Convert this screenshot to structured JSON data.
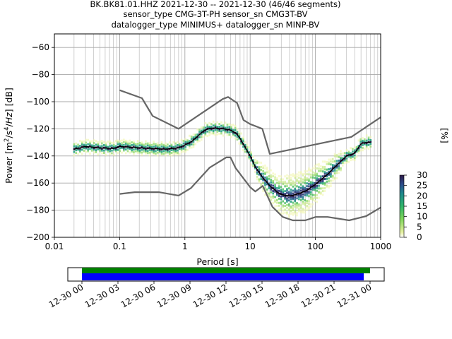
{
  "header": {
    "line1": "BK.BK81.01.HHZ   2021-12-30 -- 2021-12-30  (46/46 segments)",
    "line2": "sensor_type CMG-3T-PH sensor_sn CMG3T-BV",
    "line3": "datalogger_type MINIMUS+ datalogger_sn MINP-BV"
  },
  "colorbar": {
    "label": "[%]",
    "ticks": [
      "0",
      "5",
      "10",
      "15",
      "20",
      "25",
      "30"
    ],
    "range": [
      0,
      30
    ],
    "cmap": "pqlx"
  },
  "timeline": {
    "ticks": [
      "12-30 00",
      "12-30 03",
      "12-30 06",
      "12-30 09",
      "12-30 12",
      "12-30 15",
      "12-30 18",
      "12-30 21",
      "12-31 00"
    ],
    "colors": {
      "data": "#008000",
      "used": "#0000ff"
    }
  },
  "chart_data": {
    "type": "line",
    "title": "",
    "xlabel": "Period [s]",
    "ylabel": "Power [m^2/s^4/Hz] [dB]",
    "xscale": "log",
    "xlim": [
      0.01,
      1000
    ],
    "ylim": [
      -200,
      -50
    ],
    "xticks": [
      "0.01",
      "0.1",
      "1",
      "10",
      "100",
      "1000"
    ],
    "yticks": [
      "−200",
      "−180",
      "−160",
      "−140",
      "−120",
      "−100",
      "−80",
      "−60"
    ],
    "grid": true,
    "series": [
      {
        "style": "noise-model-high",
        "color": "#666666",
        "x": [
          0.1,
          0.22,
          0.32,
          0.8,
          3.8,
          4.6,
          6.3,
          7.9,
          10,
          15.4,
          20,
          354.8,
          1000
        ],
        "y": [
          -91.5,
          -97.4,
          -110.5,
          -120,
          -98,
          -96.5,
          -101,
          -113.5,
          -116.5,
          -120,
          -138.5,
          -126,
          -111.5
        ]
      },
      {
        "style": "noise-model-low",
        "color": "#666666",
        "x": [
          0.1,
          0.17,
          0.4,
          0.8,
          1.24,
          2.4,
          4.3,
          5,
          6,
          10,
          12,
          15.6,
          21.9,
          31.6,
          45,
          70,
          101,
          154,
          328,
          600,
          1000
        ],
        "y": [
          -168,
          -166.7,
          -166.7,
          -169.2,
          -163.7,
          -148.6,
          -141.1,
          -141.1,
          -149,
          -163,
          -166.2,
          -162.1,
          -177.5,
          -185,
          -187.5,
          -187.5,
          -185,
          -185,
          -187.5,
          -184.4,
          -178
        ]
      },
      {
        "style": "mode",
        "color": "#000000",
        "x": [
          0.02,
          0.03,
          0.05,
          0.08,
          0.1,
          0.15,
          0.2,
          0.3,
          0.5,
          0.8,
          1.0,
          1.3,
          1.6,
          2.0,
          2.5,
          3.0,
          4.0,
          5.0,
          6.0,
          7.0,
          8.0,
          10,
          12,
          15,
          20,
          25,
          30,
          40,
          50,
          70,
          100,
          150,
          200,
          300,
          400,
          500,
          600,
          700
        ],
        "y": [
          -135,
          -133,
          -134,
          -134.5,
          -133,
          -133.5,
          -134,
          -134.5,
          -135,
          -134,
          -132,
          -129,
          -125,
          -121,
          -119.5,
          -119.5,
          -120,
          -121,
          -123,
          -127,
          -132,
          -140,
          -148,
          -155,
          -162,
          -166,
          -168.5,
          -169.5,
          -168.5,
          -166,
          -161,
          -154,
          -148,
          -140,
          -138,
          -131,
          -130,
          -130
        ]
      }
    ]
  }
}
